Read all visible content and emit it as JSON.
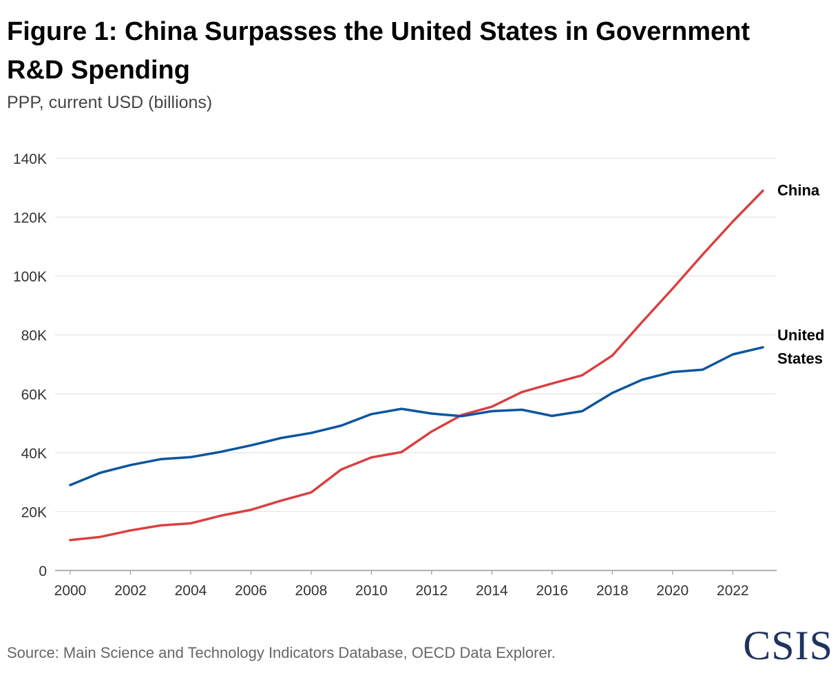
{
  "title": "Figure 1: China Surpasses the United States in Government R&D Spending",
  "subtitle": "PPP, current USD (billions)",
  "source": "Source: Main Science and Technology Indicators Database, OECD Data Explorer.",
  "logo_text": "CSIS",
  "colors": {
    "china": "#d94040",
    "united_states": "#0b55a0",
    "grid": "#e3e3e3",
    "axis": "#999999"
  },
  "chart_data": {
    "type": "line",
    "title": "Figure 1: China Surpasses the United States in Government R&D Spending",
    "subtitle": "PPP, current USD (billions)",
    "xlabel": "",
    "ylabel": "",
    "ylim": [
      0,
      140000
    ],
    "xlim": [
      2000,
      2023
    ],
    "grid": true,
    "y_ticks": [
      {
        "value": 0,
        "label": "0"
      },
      {
        "value": 20000,
        "label": "20K"
      },
      {
        "value": 40000,
        "label": "40K"
      },
      {
        "value": 60000,
        "label": "60K"
      },
      {
        "value": 80000,
        "label": "80K"
      },
      {
        "value": 100000,
        "label": "100K"
      },
      {
        "value": 120000,
        "label": "120K"
      },
      {
        "value": 140000,
        "label": "140K"
      }
    ],
    "x_ticks": [
      {
        "value": 2000,
        "label": "2000"
      },
      {
        "value": 2002,
        "label": "2002"
      },
      {
        "value": 2004,
        "label": "2004"
      },
      {
        "value": 2006,
        "label": "2006"
      },
      {
        "value": 2008,
        "label": "2008"
      },
      {
        "value": 2010,
        "label": "2010"
      },
      {
        "value": 2012,
        "label": "2012"
      },
      {
        "value": 2014,
        "label": "2014"
      },
      {
        "value": 2016,
        "label": "2016"
      },
      {
        "value": 2018,
        "label": "2018"
      },
      {
        "value": 2020,
        "label": "2020"
      },
      {
        "value": 2022,
        "label": "2022"
      }
    ],
    "x": [
      2000,
      2001,
      2002,
      2003,
      2004,
      2005,
      2006,
      2007,
      2008,
      2009,
      2010,
      2011,
      2012,
      2013,
      2014,
      2015,
      2016,
      2017,
      2018,
      2019,
      2020,
      2021,
      2022,
      2023
    ],
    "series": [
      {
        "name": "China",
        "label_lines": [
          "China"
        ],
        "color": "#d94040",
        "values": [
          10300,
          11400,
          13600,
          15300,
          16000,
          18600,
          20600,
          23700,
          26500,
          34300,
          38400,
          40200,
          47200,
          52800,
          55600,
          60600,
          63500,
          66300,
          73000,
          84500,
          95700,
          107300,
          118500,
          129000
        ]
      },
      {
        "name": "United States",
        "label_lines": [
          "United",
          "States"
        ],
        "color": "#0b55a0",
        "values": [
          29000,
          33200,
          35800,
          37800,
          38500,
          40300,
          42500,
          45000,
          46700,
          49200,
          53100,
          54900,
          53300,
          52400,
          54100,
          54600,
          52500,
          54100,
          60300,
          64800,
          67400,
          68200,
          73400,
          75800
        ]
      }
    ]
  }
}
